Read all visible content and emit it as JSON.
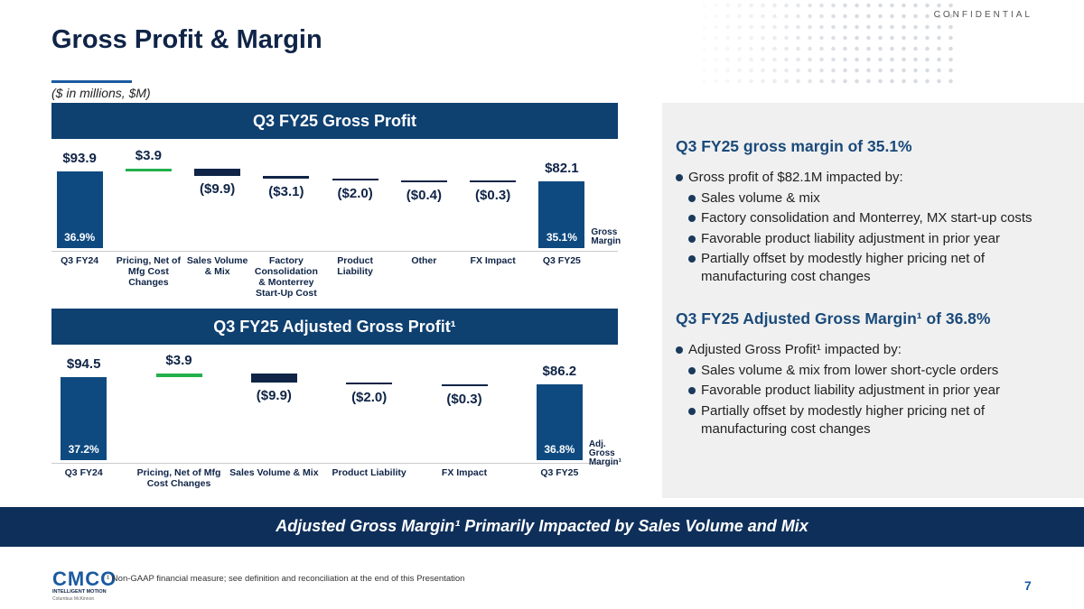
{
  "header": {
    "confidential": "CONFIDENTIAL",
    "title": "Gross Profit & Margin",
    "subtitle": "($ in millions, $M)"
  },
  "chart_data": [
    {
      "type": "waterfall",
      "title": "Q3 FY25 Gross Profit",
      "categories": [
        "Q3 FY24",
        "Pricing, Net of Mfg Cost Changes",
        "Sales Volume & Mix",
        "Factory Consolidation & Monterrey Start-Up Cost",
        "Product Liability",
        "Other",
        "FX Impact",
        "Q3 FY25"
      ],
      "values": [
        93.9,
        3.9,
        -9.9,
        -3.1,
        -2.0,
        -0.4,
        -0.3,
        82.1
      ],
      "value_labels": [
        "$93.9",
        "$3.9",
        "($9.9)",
        "($3.1)",
        "($2.0)",
        "($0.4)",
        "($0.3)",
        "$82.1"
      ],
      "is_total": [
        true,
        false,
        false,
        false,
        false,
        false,
        false,
        true
      ],
      "margin_labels": [
        "36.9%",
        null,
        null,
        null,
        null,
        null,
        null,
        "35.1%"
      ],
      "margin_title": "Gross Margin",
      "color": "#0e4a80",
      "increase_color": "#22b04b",
      "decrease_color": "#0f2447"
    },
    {
      "type": "waterfall",
      "title": "Q3 FY25 Adjusted Gross Profit¹",
      "categories": [
        "Q3 FY24",
        "Pricing, Net of Mfg Cost Changes",
        "Sales Volume & Mix",
        "Product Liability",
        "FX Impact",
        "Q3 FY25"
      ],
      "values": [
        94.5,
        3.9,
        -9.9,
        -2.0,
        -0.3,
        86.2
      ],
      "value_labels": [
        "$94.5",
        "$3.9",
        "($9.9)",
        "($2.0)",
        "($0.3)",
        "$86.2"
      ],
      "is_total": [
        true,
        false,
        false,
        false,
        false,
        true
      ],
      "margin_labels": [
        "37.2%",
        null,
        null,
        null,
        null,
        "36.8%"
      ],
      "margin_title": "Adj. Gross Margin¹",
      "color": "#0e4a80",
      "increase_color": "#22b04b",
      "decrease_color": "#0f2447"
    }
  ],
  "panel": {
    "sections": [
      {
        "heading": "Q3 FY25 gross margin of 35.1%",
        "lead": "Gross profit of $82.1M impacted by:",
        "bullets": [
          "Sales volume & mix",
          "Factory consolidation and Monterrey, MX start-up costs",
          "Favorable product liability adjustment in prior year",
          "Partially offset by modestly higher pricing net of manufacturing cost changes"
        ]
      },
      {
        "heading": "Q3 FY25 Adjusted Gross Margin¹ of 36.8%",
        "lead": "Adjusted Gross Profit¹ impacted by:",
        "bullets": [
          "Sales volume & mix from lower short-cycle orders",
          "Favorable product liability adjustment in prior year",
          "Partially offset by modestly higher pricing net of manufacturing cost changes"
        ]
      }
    ]
  },
  "banner": "Adjusted Gross Margin¹ Primarily Impacted by Sales Volume and Mix",
  "footnote": "¹ Non-GAAP financial measure; see definition and reconciliation at the end of this Presentation",
  "logo": {
    "mark": "CMCO",
    "tagline": "INTELLIGENT MOTION",
    "company": "Columbus McKinnon"
  },
  "page_number": "7"
}
